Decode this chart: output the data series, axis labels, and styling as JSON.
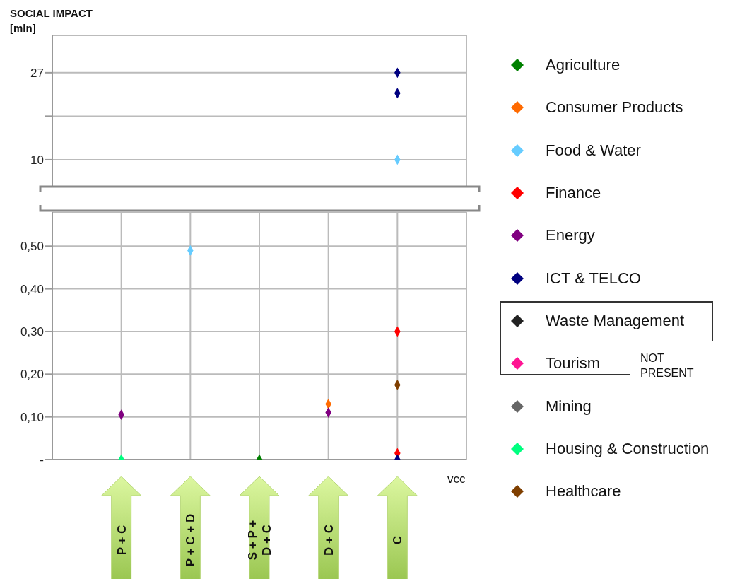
{
  "chart_data": [
    {
      "type": "scatter",
      "ylabel": "SOCIAL IMPACT [mln]",
      "categories": [
        "P + C",
        "P + C + D",
        "S + P + D + C",
        "D + C",
        "C"
      ],
      "ylim": [
        4.6,
        34.3
      ],
      "yticks": [
        {
          "value": 10,
          "label": "10"
        },
        {
          "value": 18.5,
          "label": null
        },
        {
          "value": 27,
          "label": "27"
        }
      ],
      "grid": true,
      "marker": "diamond",
      "tick_labels": "y",
      "legend": "right",
      "series": [
        {
          "name": "Food & Water",
          "color": "#66ccff",
          "x": [
            "C"
          ],
          "values": [
            10
          ]
        },
        {
          "name": "ICT & TELCO",
          "color": "#000080",
          "x": [
            "C",
            "C"
          ],
          "values": [
            27,
            23
          ]
        }
      ]
    },
    {
      "type": "scatter",
      "xlabel": "vcc",
      "categories": [
        "P + C",
        "P + C + D",
        "S + P + D + C",
        "D + C",
        "C"
      ],
      "ylim": [
        0,
        0.58
      ],
      "yticks": [
        {
          "value": 0,
          "label": "-"
        },
        {
          "value": 0.1,
          "label": "0,10"
        },
        {
          "value": 0.2,
          "label": "0,20"
        },
        {
          "value": 0.3,
          "label": "0,30"
        },
        {
          "value": 0.4,
          "label": "0,40"
        },
        {
          "value": 0.5,
          "label": "0,50"
        }
      ],
      "grid": true,
      "marker": "diamond",
      "legend": "right",
      "annotations": [
        "NOT PRESENT"
      ],
      "series": [
        {
          "name": "Agriculture",
          "color": "#008000",
          "x": [
            "S + P + D + C"
          ],
          "values": [
            0
          ]
        },
        {
          "name": "Consumer Products",
          "color": "#ff6a00",
          "x": [
            "D + C"
          ],
          "values": [
            0.13
          ]
        },
        {
          "name": "Food & Water",
          "color": "#66ccff",
          "x": [
            "P + C + D"
          ],
          "values": [
            0.49
          ]
        },
        {
          "name": "Finance",
          "color": "#ff0000",
          "x": [
            "C",
            "C"
          ],
          "values": [
            0.3,
            0.015
          ]
        },
        {
          "name": "Energy",
          "color": "#800080",
          "x": [
            "P + C",
            "D + C"
          ],
          "values": [
            0.105,
            0.11
          ]
        },
        {
          "name": "ICT & TELCO",
          "color": "#000080",
          "x": [
            "C"
          ],
          "values": [
            0
          ]
        },
        {
          "name": "Waste Management",
          "color": "#222222",
          "values": [
            null,
            null,
            null,
            null,
            null
          ]
        },
        {
          "name": "Tourism",
          "color": "#ff1493",
          "values": [
            null,
            null,
            null,
            null,
            null
          ]
        },
        {
          "name": "Mining",
          "color": "#666666",
          "values": [
            null,
            null,
            null,
            null,
            null
          ]
        },
        {
          "name": "Housing & Construction",
          "color": "#00ff80",
          "x": [
            "P + C"
          ],
          "values": [
            0
          ]
        },
        {
          "name": "Healthcare",
          "color": "#7f3f00",
          "x": [
            "C"
          ],
          "values": [
            0.175
          ]
        }
      ]
    }
  ]
}
